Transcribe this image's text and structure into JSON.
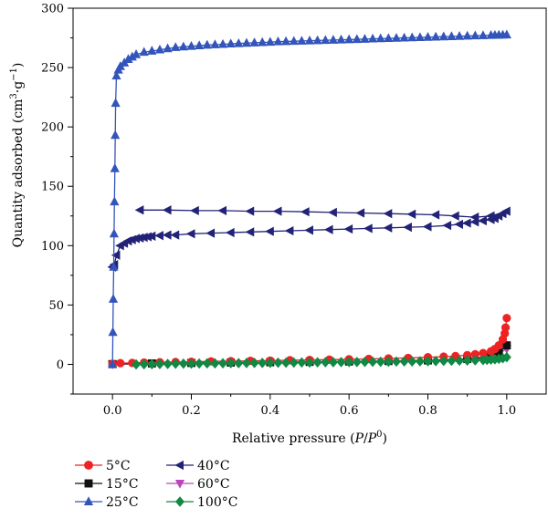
{
  "chart_data": {
    "type": "scatter",
    "xlabel_parts": [
      "Relative pressure (",
      "P",
      "/",
      "P",
      "0",
      ")"
    ],
    "ylabel_parts": [
      "Quantity adsorbed (cm",
      "3",
      "·g",
      "−1",
      ")"
    ],
    "xlim": [
      -0.1,
      1.1
    ],
    "ylim": [
      -25,
      300
    ],
    "x_ticks": [
      0.0,
      0.2,
      0.4,
      0.6,
      0.8,
      1.0
    ],
    "x_tick_labels": [
      "0.0",
      "0.2",
      "0.4",
      "0.6",
      "0.8",
      "1.0"
    ],
    "y_ticks": [
      0,
      50,
      100,
      150,
      200,
      250,
      300
    ],
    "y_tick_labels": [
      "0",
      "50",
      "100",
      "150",
      "200",
      "250",
      "300"
    ],
    "grid": false,
    "legend_position": "bottom-left",
    "series": [
      {
        "name": "5°C",
        "color": "#ee2222",
        "marker": "circle",
        "x": [
          0.0,
          0.02,
          0.05,
          0.08,
          0.12,
          0.16,
          0.2,
          0.25,
          0.3,
          0.35,
          0.4,
          0.45,
          0.5,
          0.55,
          0.6,
          0.65,
          0.7,
          0.75,
          0.8,
          0.84,
          0.87,
          0.9,
          0.92,
          0.94,
          0.96,
          0.97,
          0.98,
          0.99,
          0.995,
          0.997,
          1.0
        ],
        "y": [
          0.5,
          1,
          1.2,
          1.5,
          1.8,
          2,
          2.2,
          2.5,
          2.7,
          3,
          3.2,
          3.5,
          3.7,
          4,
          4.3,
          4.6,
          5,
          5.4,
          6,
          6.5,
          7,
          7.8,
          8.5,
          9.5,
          11,
          13,
          16,
          21,
          26,
          31,
          39
        ]
      },
      {
        "name": "15°C",
        "color": "#111111",
        "marker": "square",
        "x": [
          0.0,
          0.1,
          0.2,
          0.3,
          0.4,
          0.5,
          0.6,
          0.7,
          0.8,
          0.9,
          0.95,
          0.98,
          1.0
        ],
        "y": [
          0.2,
          0.8,
          1.2,
          1.5,
          1.8,
          2.1,
          2.4,
          2.8,
          3.3,
          4.5,
          6.5,
          10,
          16
        ]
      },
      {
        "name": "25°C",
        "color": "#3355bb",
        "marker": "triangle-up",
        "x": [
          0.0,
          0.001,
          0.002,
          0.003,
          0.004,
          0.005,
          0.006,
          0.007,
          0.008,
          0.01,
          0.015,
          0.02,
          0.03,
          0.04,
          0.05,
          0.06,
          0.08,
          0.1,
          0.12,
          0.14,
          0.16,
          0.18,
          0.2,
          0.22,
          0.24,
          0.26,
          0.28,
          0.3,
          0.32,
          0.34,
          0.36,
          0.38,
          0.4,
          0.42,
          0.44,
          0.46,
          0.48,
          0.5,
          0.52,
          0.54,
          0.56,
          0.58,
          0.6,
          0.62,
          0.64,
          0.66,
          0.68,
          0.7,
          0.72,
          0.74,
          0.76,
          0.78,
          0.8,
          0.82,
          0.84,
          0.86,
          0.88,
          0.9,
          0.92,
          0.94,
          0.96,
          0.97,
          0.98,
          0.99,
          1.0
        ],
        "y": [
          0,
          27,
          55,
          82,
          110,
          137,
          165,
          193,
          220,
          243,
          248,
          251,
          254,
          257,
          259,
          261,
          263,
          264,
          265,
          266,
          267,
          267.5,
          268,
          268.5,
          269,
          269.3,
          269.6,
          270,
          270.3,
          270.6,
          270.9,
          271.2,
          271.5,
          271.8,
          272,
          272.2,
          272.4,
          272.6,
          272.8,
          273,
          273.2,
          273.4,
          273.6,
          273.8,
          274,
          274.2,
          274.4,
          274.6,
          274.8,
          275,
          275.2,
          275.4,
          275.6,
          275.8,
          276,
          276.2,
          276.4,
          276.6,
          276.8,
          277,
          277.2,
          277.3,
          277.4,
          277.5,
          277.6
        ]
      },
      {
        "name": "40°C",
        "color": "#222277",
        "marker": "triangle-left",
        "x": [
          0.0,
          0.005,
          0.01,
          0.02,
          0.03,
          0.04,
          0.05,
          0.06,
          0.07,
          0.08,
          0.09,
          0.1,
          0.12,
          0.14,
          0.16,
          0.2,
          0.25,
          0.3,
          0.35,
          0.4,
          0.45,
          0.5,
          0.55,
          0.6,
          0.65,
          0.7,
          0.75,
          0.8,
          0.85,
          0.88,
          0.9,
          0.92,
          0.94,
          0.96,
          0.97,
          0.98,
          0.99,
          1.0,
          0.96,
          0.92,
          0.87,
          0.82,
          0.76,
          0.7,
          0.63,
          0.56,
          0.49,
          0.42,
          0.35,
          0.28,
          0.21,
          0.14,
          0.07
        ],
        "y": [
          82,
          84,
          92,
          100,
          102,
          104,
          105,
          106,
          106.5,
          107,
          107.5,
          108,
          108.5,
          109,
          109,
          110,
          110.5,
          111,
          111.5,
          112,
          112.5,
          113,
          113.5,
          114,
          114.5,
          115,
          115.5,
          116,
          117,
          118,
          119,
          120,
          121,
          122,
          123,
          125,
          127,
          129,
          125,
          124,
          125,
          126,
          126.5,
          127,
          127.5,
          128,
          128.5,
          129,
          129,
          129.5,
          129.5,
          130,
          130
        ]
      },
      {
        "name": "60°C",
        "color": "#bb44bb",
        "marker": "triangle-down",
        "x": [
          0.0,
          0.1,
          0.2,
          0.3,
          0.4,
          0.5,
          0.6,
          0.7,
          0.8,
          0.9,
          0.95,
          0.98,
          1.0
        ],
        "y": [
          0.1,
          0.5,
          0.8,
          1,
          1.2,
          1.5,
          1.8,
          2.1,
          2.5,
          3.5,
          5.5,
          9,
          13
        ]
      },
      {
        "name": "100°C",
        "color": "#118844",
        "marker": "diamond",
        "x": [
          0.06,
          0.08,
          0.1,
          0.12,
          0.14,
          0.16,
          0.18,
          0.2,
          0.22,
          0.24,
          0.26,
          0.28,
          0.3,
          0.32,
          0.34,
          0.36,
          0.38,
          0.4,
          0.42,
          0.44,
          0.46,
          0.48,
          0.5,
          0.52,
          0.54,
          0.56,
          0.58,
          0.6,
          0.62,
          0.64,
          0.66,
          0.68,
          0.7,
          0.72,
          0.74,
          0.76,
          0.78,
          0.8,
          0.82,
          0.84,
          0.86,
          0.88,
          0.9,
          0.92,
          0.94,
          0.95,
          0.96,
          0.97,
          0.98,
          0.99,
          1.0
        ],
        "y": [
          0,
          0.1,
          0.2,
          0.3,
          0.4,
          0.5,
          0.6,
          0.6,
          0.7,
          0.8,
          0.8,
          0.9,
          1,
          1,
          1.1,
          1.2,
          1.2,
          1.3,
          1.4,
          1.4,
          1.5,
          1.6,
          1.6,
          1.7,
          1.8,
          1.8,
          1.9,
          2,
          2,
          2.1,
          2.2,
          2.2,
          2.3,
          2.4,
          2.5,
          2.5,
          2.6,
          2.7,
          2.8,
          2.9,
          3,
          3.1,
          3.2,
          3.4,
          3.6,
          3.8,
          4,
          4.3,
          4.7,
          5.2,
          6
        ]
      }
    ]
  }
}
